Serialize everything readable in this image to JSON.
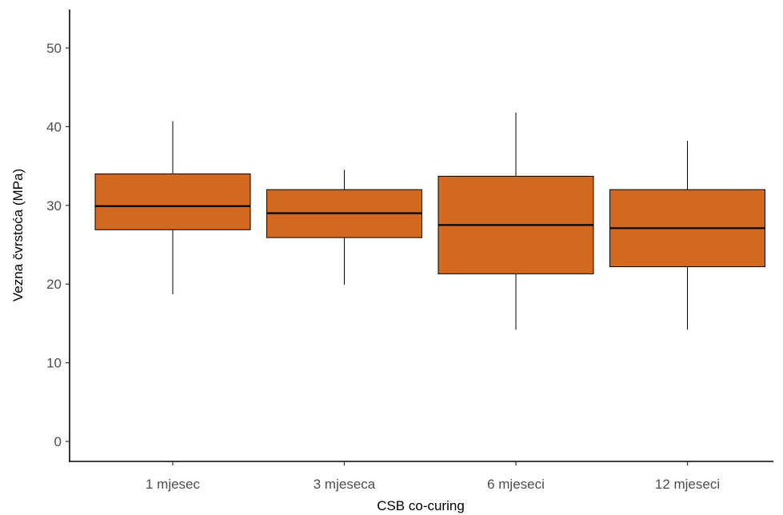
{
  "chart_data": {
    "type": "boxplot",
    "title": "",
    "xlabel": "CSB co-curing",
    "ylabel": "Vezna čvrstoća (MPa)",
    "ylim": [
      -2.5,
      55
    ],
    "yticks": [
      0,
      10,
      20,
      30,
      40,
      50
    ],
    "grid": false,
    "legend": "none",
    "categories": [
      "1 mjesec",
      "3 mjeseca",
      "6 mjeseci",
      "12 mjeseci"
    ],
    "boxes": [
      {
        "category": "1 mjesec",
        "min": 18.7,
        "q1": 26.9,
        "median": 29.9,
        "q3": 34.0,
        "max": 40.7
      },
      {
        "category": "3 mjeseca",
        "min": 19.9,
        "q1": 25.9,
        "median": 29.0,
        "q3": 32.0,
        "max": 34.5
      },
      {
        "category": "6 mjeseci",
        "min": 14.2,
        "q1": 21.3,
        "median": 27.5,
        "q3": 33.7,
        "max": 41.8
      },
      {
        "category": "12 mjeseci",
        "min": 14.2,
        "q1": 22.2,
        "median": 27.1,
        "q3": 32.0,
        "max": 38.2
      }
    ],
    "fill_color": "#d2691e",
    "line_color": "#000000"
  }
}
